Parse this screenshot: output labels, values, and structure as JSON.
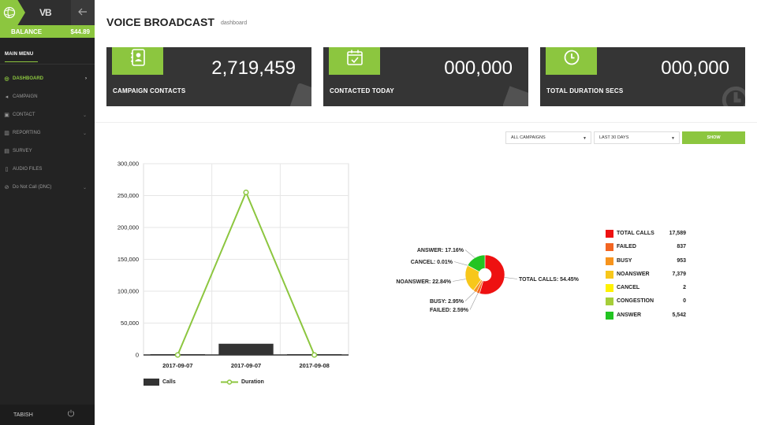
{
  "sidebar": {
    "brand": "VB",
    "balance_label": "BALANCE",
    "balance_value": "$44.89",
    "menu_title": "MAIN MENU",
    "items": [
      {
        "label": "DASHBOARD",
        "icon": "dashboard-icon",
        "active": true
      },
      {
        "label": "CAMPAIGN",
        "icon": "megaphone-icon"
      },
      {
        "label": "CONTACT",
        "icon": "contact-book-icon"
      },
      {
        "label": "REPORTING",
        "icon": "chart-icon"
      },
      {
        "label": "SURVEY",
        "icon": "clipboard-icon"
      },
      {
        "label": "AUDIO FILES",
        "icon": "audio-file-icon"
      },
      {
        "label": "Do Not Call (DNC)",
        "icon": "ban-icon"
      }
    ],
    "user": "TABISH"
  },
  "header": {
    "title": "VOICE BROADCAST",
    "subtitle": "dashboard"
  },
  "cards": [
    {
      "label": "CAMPAIGN CONTACTS",
      "value": "2,719,459",
      "icon": "contact-book-icon"
    },
    {
      "label": "CONTACTED TODAY",
      "value": "000,000",
      "icon": "calendar-check-icon"
    },
    {
      "label": "TOTAL DURATION SECS",
      "value": "000,000",
      "icon": "clock-icon"
    }
  ],
  "filters": {
    "campaign_select": "ALL CAMPAIGNS",
    "range_select": "LAST 30 DAYS",
    "show_button": "SHOW"
  },
  "colors": {
    "accent": "#8cc63f",
    "card_bg": "#353535",
    "sidebar_bg": "#232323"
  },
  "chart_data": [
    {
      "type": "bar",
      "categories": [
        "2017-09-07",
        "2017-09-07",
        "2017-09-08"
      ],
      "series": [
        {
          "name": "Calls",
          "type": "bar",
          "values": [
            0,
            17589,
            0
          ],
          "color": "#333333"
        },
        {
          "name": "Duration",
          "type": "line",
          "values": [
            0,
            255000,
            0
          ],
          "color": "#8cc63f"
        }
      ],
      "ylim": [
        0,
        300000
      ],
      "yticks": [
        "0",
        "50,000",
        "100,000",
        "150,000",
        "200,000",
        "250,000",
        "300,000"
      ],
      "grid": true,
      "legend": "bottom-left"
    },
    {
      "type": "pie",
      "donut": true,
      "slices": [
        {
          "name": "TOTAL CALLS",
          "label": "TOTAL CALLS: 54.45%",
          "value": 54.45,
          "color": "#ee1111"
        },
        {
          "name": "FAILED",
          "label": "FAILED: 2.59%",
          "value": 2.59,
          "color": "#f26522"
        },
        {
          "name": "BUSY",
          "label": "BUSY: 2.95%",
          "value": 2.95,
          "color": "#f7941d"
        },
        {
          "name": "NOANSWER",
          "label": "NOANSWER: 22.84%",
          "value": 22.84,
          "color": "#f7c71b"
        },
        {
          "name": "CANCEL",
          "label": "CANCEL: 0.01%",
          "value": 0.01,
          "color": "#fff200"
        },
        {
          "name": "ANSWER",
          "label": "ANSWER: 17.16%",
          "value": 17.16,
          "color": "#22c422"
        }
      ]
    }
  ],
  "stats_legend": [
    {
      "label": "TOTAL CALLS",
      "value": "17,589",
      "color": "#ee1111"
    },
    {
      "label": "FAILED",
      "value": "837",
      "color": "#f26522"
    },
    {
      "label": "BUSY",
      "value": "953",
      "color": "#f7941d"
    },
    {
      "label": "NOANSWER",
      "value": "7,379",
      "color": "#f7c71b"
    },
    {
      "label": "CANCEL",
      "value": "2",
      "color": "#fff200"
    },
    {
      "label": "CONGESTION",
      "value": "0",
      "color": "#a6ce39"
    },
    {
      "label": "ANSWER",
      "value": "5,542",
      "color": "#22c422"
    }
  ]
}
